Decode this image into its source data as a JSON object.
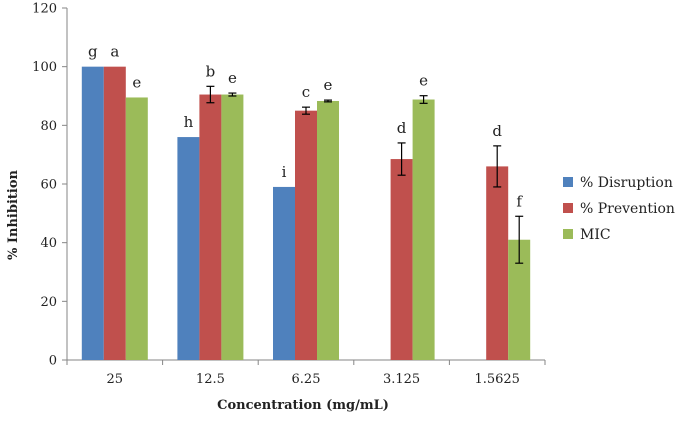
{
  "chart_data": {
    "type": "bar",
    "xlabel": "Concentration (mg/mL)",
    "ylabel": "% Inhibition",
    "ylim": [
      0,
      120
    ],
    "yticks": [
      0,
      20,
      40,
      60,
      80,
      100,
      120
    ],
    "grid": false,
    "legend_position": "right",
    "categories": [
      "25",
      "12.5",
      "6.25",
      "3.125",
      "1.5625"
    ],
    "series": [
      {
        "name": "% Disruption",
        "color": "#4F81BD",
        "values": [
          100,
          76,
          59,
          null,
          null
        ],
        "errors": [
          0,
          0,
          0,
          null,
          null
        ],
        "labels": [
          "g",
          "h",
          "i",
          "",
          ""
        ]
      },
      {
        "name": "% Prevention",
        "color": "#C0504D",
        "values": [
          100,
          90.5,
          85,
          68.5,
          66
        ],
        "errors": [
          0,
          2.8,
          1.2,
          5.5,
          7
        ],
        "labels": [
          "a",
          "b",
          "c",
          "d",
          "d"
        ]
      },
      {
        "name": "MIC",
        "color": "#9BBB59",
        "values": [
          89.5,
          90.5,
          88.3,
          88.8,
          41
        ],
        "errors": [
          0,
          0.5,
          0.3,
          1.3,
          8
        ],
        "labels": [
          "e",
          "e",
          "e",
          "e",
          "f"
        ]
      }
    ]
  }
}
